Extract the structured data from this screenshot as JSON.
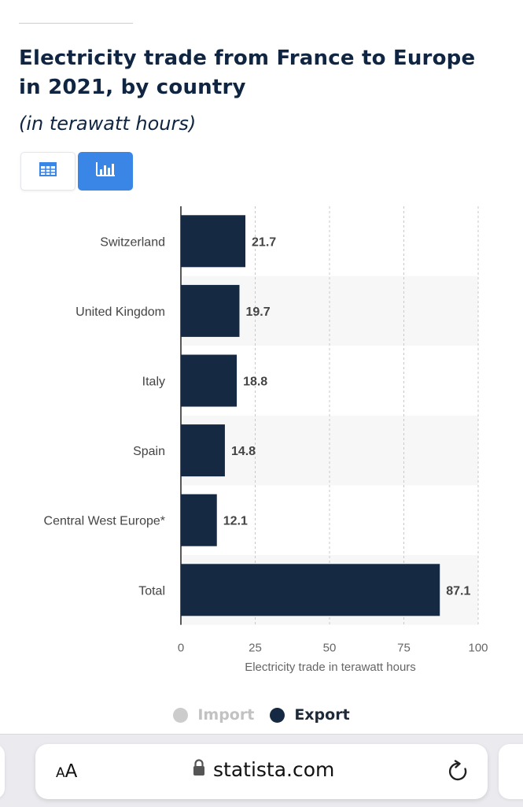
{
  "header": {
    "title": "Electricity trade from France to Europe in 2021, by country",
    "subtitle": "(in terawatt hours)"
  },
  "view_toggle": {
    "table_icon": "table-icon",
    "chart_icon": "bar-chart-icon",
    "active": "chart"
  },
  "chart_data": {
    "type": "bar",
    "orientation": "horizontal",
    "categories": [
      "Switzerland",
      "United Kingdom",
      "Italy",
      "Spain",
      "Central West Europe*",
      "Total"
    ],
    "series": [
      {
        "name": "Export",
        "values": [
          21.7,
          19.7,
          18.8,
          14.8,
          12.1,
          87.1
        ],
        "color": "#152a42"
      },
      {
        "name": "Import",
        "values": [
          0,
          0,
          0,
          0,
          0,
          0
        ],
        "color": "#cccccc",
        "hidden": true
      }
    ],
    "value_labels": [
      "21.7",
      "19.7",
      "18.8",
      "14.8",
      "12.1",
      "87.1"
    ],
    "xlim": [
      0,
      100
    ],
    "xticks": [
      0,
      25,
      50,
      75,
      100
    ],
    "xlabel": "Electricity trade in terawatt hours",
    "ylabel": "",
    "grid": true,
    "legend_position": "bottom"
  },
  "legend": {
    "items": [
      {
        "label": "Import",
        "color": "#cccccc",
        "active": false,
        "text_color": "#c2c2c2"
      },
      {
        "label": "Export",
        "color": "#152a42",
        "active": true,
        "text_color": "#1e2a38"
      }
    ]
  },
  "browser": {
    "text_size_small": "A",
    "text_size_big": "A",
    "url": "statista.com",
    "lock_icon": "lock-icon",
    "reload_icon": "reload-icon"
  }
}
